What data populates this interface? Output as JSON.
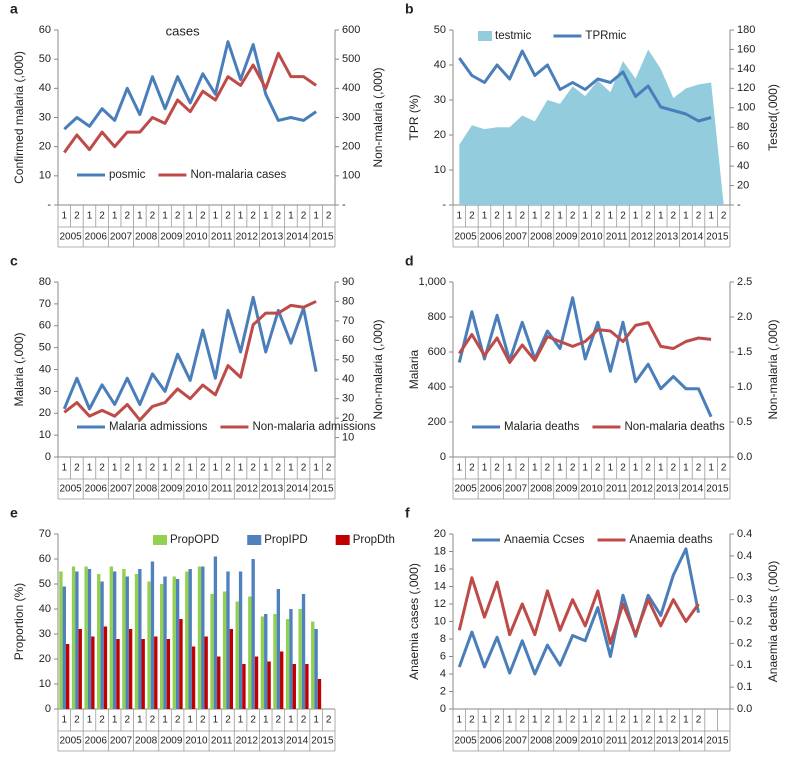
{
  "chart_data": [
    {
      "type": "line",
      "label": "a",
      "annotation": "cases",
      "ylabel": "Confirmed malaria (,000)",
      "y2label": "Non-malaria (,000)",
      "legend_position": "bottom",
      "categories": [
        "1",
        "2",
        "1",
        "2",
        "1",
        "2",
        "1",
        "2",
        "1",
        "2",
        "1",
        "2",
        "1",
        "2",
        "1",
        "2",
        "1",
        "2",
        "1",
        "2",
        "1",
        "2"
      ],
      "years": [
        "2005",
        "2006",
        "2007",
        "2008",
        "2009",
        "2010",
        "2011",
        "2012",
        "2013",
        "2014",
        "2015"
      ],
      "ylim": [
        0,
        60
      ],
      "yticks": [
        {
          "value": 0,
          "label": "-"
        },
        10,
        20,
        30,
        40,
        50,
        60
      ],
      "y2lim": [
        0,
        600
      ],
      "y2ticks": [
        {
          "value": 0,
          "label": "-"
        },
        100,
        200,
        300,
        400,
        500,
        600
      ],
      "series": [
        {
          "name": "posmic",
          "color": "#4a7ebb",
          "values": [
            26,
            30,
            27,
            33,
            29,
            40,
            31,
            44,
            33,
            44,
            35,
            45,
            38,
            56,
            43,
            55,
            38,
            29,
            30,
            29,
            32,
            null
          ]
        },
        {
          "name": "Non-malaria cases",
          "color": "#be4b48",
          "axis": "y2",
          "values": [
            180,
            240,
            190,
            250,
            200,
            250,
            250,
            300,
            280,
            360,
            320,
            390,
            360,
            440,
            410,
            480,
            400,
            520,
            440,
            440,
            410,
            null
          ]
        }
      ]
    },
    {
      "type": "line",
      "label": "b",
      "ylabel": "TPR (%)",
      "y2label": "Tested(,000)",
      "legend_position": "top",
      "categories": [
        "1",
        "2",
        "1",
        "2",
        "1",
        "2",
        "1",
        "2",
        "1",
        "2",
        "1",
        "2",
        "1",
        "2",
        "1",
        "2",
        "1",
        "2",
        "1",
        "2",
        "1",
        "2"
      ],
      "years": [
        "2005",
        "2006",
        "2007",
        "2008",
        "2009",
        "2010",
        "2011",
        "2012",
        "2013",
        "2014",
        "2015"
      ],
      "ylim": [
        0,
        50
      ],
      "yticks": [
        {
          "value": 0,
          "label": "-"
        },
        10,
        20,
        30,
        40,
        50
      ],
      "y2lim": [
        0,
        180
      ],
      "y2ticks": [
        {
          "value": 0,
          "label": "-"
        },
        20,
        40,
        60,
        80,
        100,
        120,
        140,
        160,
        180
      ],
      "series": [
        {
          "name": "testmic",
          "color": "#93cddd",
          "axis": "y2",
          "kind": "area",
          "values": [
            62,
            82,
            78,
            80,
            80,
            92,
            86,
            108,
            104,
            122,
            112,
            128,
            116,
            148,
            130,
            160,
            140,
            110,
            120,
            124,
            126,
            0
          ]
        },
        {
          "name": "TPRmic",
          "color": "#4a7ebb",
          "values": [
            42,
            37,
            35,
            40,
            36,
            44,
            37,
            40,
            33,
            35,
            33,
            36,
            35,
            38,
            31,
            34,
            28,
            27,
            26,
            24,
            25,
            null
          ]
        }
      ]
    },
    {
      "type": "line",
      "label": "c",
      "ylabel": "Malaria (,000)",
      "y2label": "Non-malaria (,000)",
      "legend_position": "bottom",
      "categories": [
        "1",
        "2",
        "1",
        "2",
        "1",
        "2",
        "1",
        "2",
        "1",
        "2",
        "1",
        "2",
        "1",
        "2",
        "1",
        "2",
        "1",
        "2",
        "1",
        "2",
        "1",
        "2"
      ],
      "years": [
        "2005",
        "2006",
        "2007",
        "2008",
        "2009",
        "2010",
        "2011",
        "2012",
        "2013",
        "2014",
        "2015"
      ],
      "ylim": [
        0,
        80
      ],
      "yticks": [
        0,
        10,
        20,
        30,
        40,
        50,
        60,
        70,
        80
      ],
      "y2lim": [
        0,
        90
      ],
      "y2ticks": [
        10,
        20,
        30,
        40,
        50,
        60,
        70,
        80,
        90
      ],
      "series": [
        {
          "name": "Malaria admissions",
          "color": "#4a7ebb",
          "values": [
            22,
            36,
            22,
            33,
            24,
            36,
            24,
            38,
            30,
            47,
            35,
            58,
            36,
            67,
            48,
            73,
            48,
            67,
            52,
            68,
            39,
            null
          ]
        },
        {
          "name": "Non-malaria admissions",
          "color": "#be4b48",
          "axis": "y2",
          "values": [
            23,
            28,
            21,
            24,
            21,
            27,
            19,
            26,
            28,
            35,
            30,
            37,
            32,
            47,
            41,
            68,
            74,
            74,
            78,
            77,
            80,
            null
          ]
        }
      ]
    },
    {
      "type": "line",
      "label": "d",
      "ylabel": "Malaria",
      "y2label": "Non-malaria (,000)",
      "legend_position": "bottom",
      "categories": [
        "1",
        "2",
        "1",
        "2",
        "1",
        "2",
        "1",
        "2",
        "1",
        "2",
        "1",
        "2",
        "1",
        "2",
        "1",
        "2",
        "1",
        "2",
        "1",
        "2",
        "1",
        "2"
      ],
      "years": [
        "2005",
        "2006",
        "2007",
        "2008",
        "2009",
        "2010",
        "2011",
        "2012",
        "2013",
        "2014",
        "2015"
      ],
      "ylim": [
        0,
        1000
      ],
      "yticks": [
        0,
        200,
        400,
        600,
        800,
        {
          "value": 1000,
          "label": "1,000"
        }
      ],
      "y2lim": [
        0,
        2.5
      ],
      "y2ticks": [
        {
          "value": 0,
          "label": "0.0"
        },
        0.5,
        {
          "value": 1,
          "label": "1.0"
        },
        1.5,
        {
          "value": 2,
          "label": "2.0"
        },
        2.5
      ],
      "series": [
        {
          "name": "Malaria deaths",
          "color": "#4a7ebb",
          "values": [
            540,
            830,
            560,
            810,
            550,
            770,
            560,
            720,
            620,
            910,
            560,
            770,
            490,
            770,
            430,
            530,
            390,
            460,
            390,
            390,
            230,
            null
          ]
        },
        {
          "name": "Non-malaria deaths",
          "color": "#be4b48",
          "axis": "y2",
          "values": [
            1.48,
            1.75,
            1.45,
            1.7,
            1.35,
            1.6,
            1.38,
            1.72,
            1.65,
            1.58,
            1.65,
            1.82,
            1.8,
            1.65,
            1.88,
            1.92,
            1.58,
            1.55,
            1.65,
            1.7,
            1.68,
            null
          ]
        }
      ]
    },
    {
      "type": "bar",
      "label": "e",
      "ylabel": "Proportion (%)",
      "legend_position": "top",
      "categories": [
        "1",
        "2",
        "1",
        "2",
        "1",
        "2",
        "1",
        "2",
        "1",
        "2",
        "1",
        "2",
        "1",
        "2",
        "1",
        "2",
        "1",
        "2",
        "1",
        "2",
        "1",
        "2"
      ],
      "years": [
        "2005",
        "2006",
        "2007",
        "2008",
        "2009",
        "2010",
        "2011",
        "2012",
        "2013",
        "2014",
        "2015"
      ],
      "ylim": [
        0,
        70
      ],
      "yticks": [
        0,
        10,
        20,
        30,
        40,
        50,
        60,
        70
      ],
      "series": [
        {
          "name": "PropOPD",
          "color": "#92d050",
          "values": [
            55,
            57,
            57,
            54,
            57,
            56,
            54,
            51,
            50,
            53,
            55,
            57,
            46,
            47,
            43,
            45,
            37,
            38,
            36,
            40,
            35,
            null
          ]
        },
        {
          "name": "PropIPD",
          "color": "#4f81bd",
          "values": [
            49,
            55,
            56,
            51,
            55,
            53,
            56,
            59,
            53,
            52,
            56,
            57,
            61,
            55,
            55,
            60,
            38,
            48,
            40,
            46,
            32,
            null
          ]
        },
        {
          "name": "PropDth",
          "color": "#c00000",
          "values": [
            26,
            32,
            29,
            33,
            28,
            32,
            28,
            29,
            28,
            36,
            25,
            29,
            21,
            32,
            18,
            21,
            19,
            23,
            18,
            18,
            12,
            null
          ]
        }
      ]
    },
    {
      "type": "line",
      "label": "f",
      "ylabel": "Anaemia cases (,000)",
      "y2label": "Anaemia deaths (,000)",
      "legend_position": "top",
      "categories": [
        "1",
        "2",
        "1",
        "2",
        "1",
        "2",
        "1",
        "2",
        "1",
        "2",
        "1",
        "2",
        "1",
        "2",
        "1",
        "2",
        "1",
        "2",
        "1",
        "2"
      ],
      "years": [
        "2005",
        "2006",
        "2007",
        "2008",
        "2009",
        "2010",
        "2011",
        "2012",
        "2013",
        "2014",
        "2015"
      ],
      "ylim": [
        0,
        20
      ],
      "yticks": [
        0,
        2,
        4,
        6,
        8,
        10,
        12,
        14,
        16,
        18,
        20
      ],
      "y2lim": [
        0,
        0.4
      ],
      "y2ticks": [
        {
          "value": 0,
          "label": "0.0"
        },
        {
          "value": 0.05,
          "label": "0.1"
        },
        0.1,
        {
          "value": 0.15,
          "label": "0.2"
        },
        0.2,
        {
          "value": 0.25,
          "label": "0.3"
        },
        0.3,
        {
          "value": 0.35,
          "label": "0.4"
        },
        0.4
      ],
      "series": [
        {
          "name": "Anaemia Ccses",
          "color": "#4a7ebb",
          "values": [
            4.8,
            8.8,
            4.8,
            8.2,
            4.1,
            7.8,
            4,
            7.3,
            5,
            8.4,
            7.8,
            11.6,
            6,
            13,
            8.3,
            13,
            10.7,
            15.3,
            18.3,
            11
          ]
        },
        {
          "name": "Anaemia deaths",
          "color": "#be4b48",
          "axis": "y2",
          "values": [
            0.18,
            0.3,
            0.21,
            0.29,
            0.17,
            0.24,
            0.17,
            0.27,
            0.18,
            0.25,
            0.19,
            0.27,
            0.15,
            0.24,
            0.17,
            0.25,
            0.19,
            0.25,
            0.2,
            0.24
          ]
        }
      ]
    }
  ]
}
